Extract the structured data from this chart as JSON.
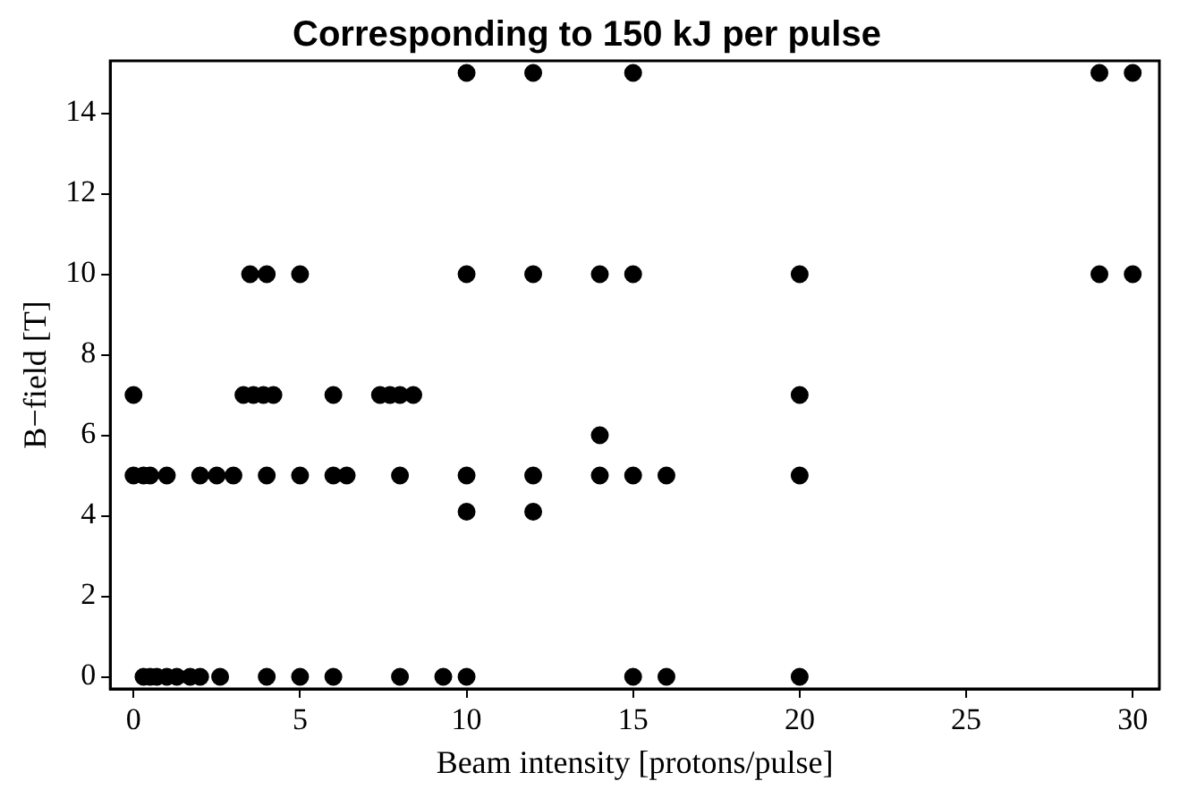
{
  "chart_data": {
    "type": "scatter",
    "title": "Corresponding to 150 kJ per pulse",
    "xlabel": "Beam intensity [protons/pulse]",
    "ylabel": "B−field [T]",
    "series": [
      {
        "color": "#000000",
        "x": [
          0,
          3.3,
          3.6,
          3.9,
          4.2,
          6,
          7.4,
          7.7,
          8,
          8.4,
          3.5,
          4,
          5,
          10,
          12,
          14,
          15,
          20,
          29,
          30,
          10,
          12,
          15,
          29,
          30,
          20,
          14,
          0,
          0.3,
          0.5,
          1,
          2,
          2.5,
          3,
          4,
          5,
          6,
          6.4,
          8,
          10,
          12,
          14,
          15,
          16,
          20,
          10,
          12,
          0.3,
          0.5,
          0.7,
          1,
          1.3,
          1.7,
          2,
          2.6,
          4,
          5,
          6,
          8,
          9.3,
          10,
          15,
          16,
          20
        ],
        "values": [
          7,
          7,
          7,
          7,
          7,
          7,
          7,
          7,
          7,
          7,
          10,
          10,
          10,
          10,
          10,
          10,
          10,
          10,
          10,
          10,
          15,
          15,
          15,
          15,
          15,
          7,
          6,
          5,
          5,
          5,
          5,
          5,
          5,
          5,
          5,
          5,
          5,
          5,
          5,
          5,
          5,
          5,
          5,
          5,
          5,
          4.1,
          4.1,
          0,
          0,
          0,
          0,
          0,
          0,
          0,
          0,
          0,
          0,
          0,
          0,
          0,
          0,
          0,
          0,
          0
        ]
      }
    ],
    "xlim": [
      -0.7,
      30.8
    ],
    "ylim": [
      -0.3,
      15.3
    ],
    "xticks": [
      0,
      5,
      10,
      15,
      20,
      25,
      30
    ],
    "yticks": [
      0,
      2,
      4,
      6,
      8,
      10,
      12,
      14
    ],
    "marker": "circle",
    "grid": false,
    "legend": false
  }
}
